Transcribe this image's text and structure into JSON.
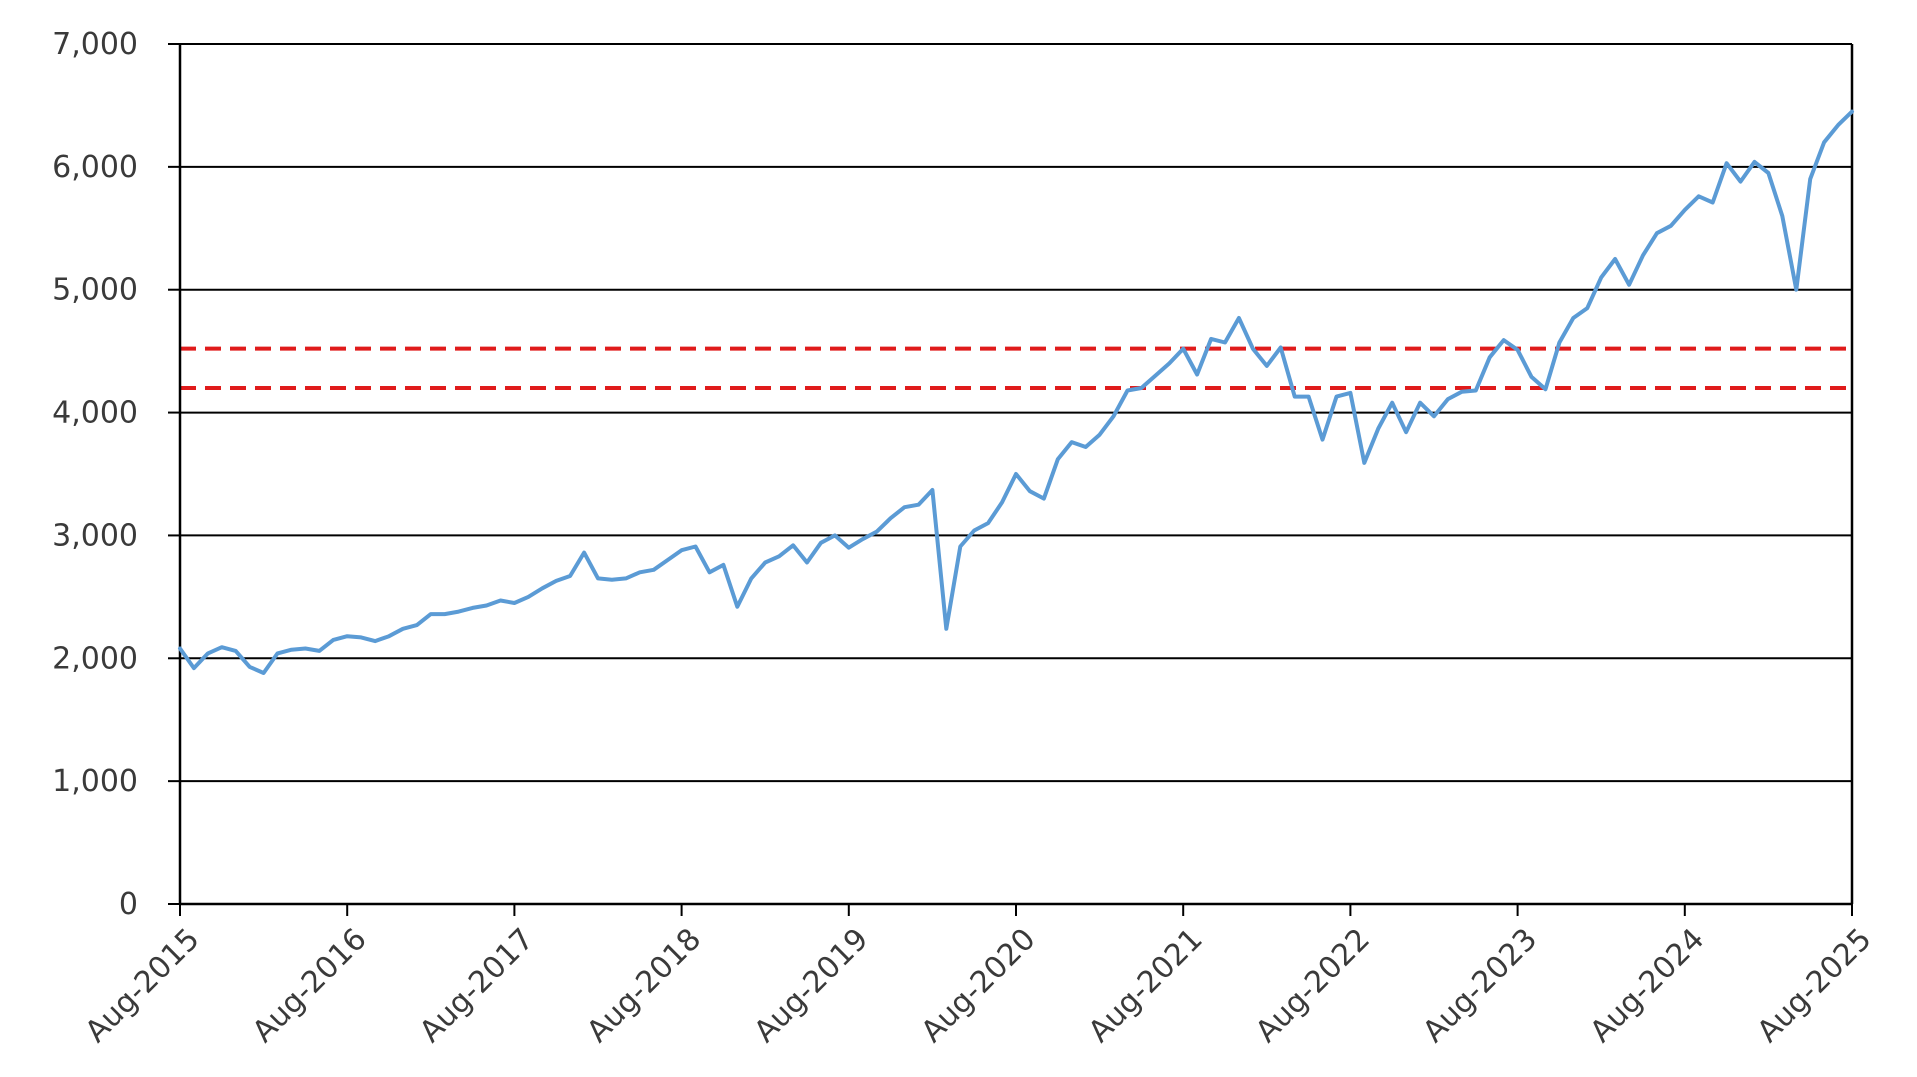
{
  "chart_data": {
    "type": "line",
    "title": "",
    "xlabel": "",
    "ylabel": "",
    "x_range": [
      "2015-08",
      "2025-08"
    ],
    "ylim": [
      0,
      7000
    ],
    "y_ticks": [
      {
        "value": 0,
        "label": "0"
      },
      {
        "value": 1000,
        "label": "1,000"
      },
      {
        "value": 2000,
        "label": "2,000"
      },
      {
        "value": 3000,
        "label": "3,000"
      },
      {
        "value": 4000,
        "label": "4,000"
      },
      {
        "value": 5000,
        "label": "5,000"
      },
      {
        "value": 6000,
        "label": "6,000"
      },
      {
        "value": 7000,
        "label": "7,000"
      }
    ],
    "x_ticks": [
      {
        "date": "2015-08",
        "label": "Aug-2015"
      },
      {
        "date": "2016-08",
        "label": "Aug-2016"
      },
      {
        "date": "2017-08",
        "label": "Aug-2017"
      },
      {
        "date": "2018-08",
        "label": "Aug-2018"
      },
      {
        "date": "2019-08",
        "label": "Aug-2019"
      },
      {
        "date": "2020-08",
        "label": "Aug-2020"
      },
      {
        "date": "2021-08",
        "label": "Aug-2021"
      },
      {
        "date": "2022-08",
        "label": "Aug-2022"
      },
      {
        "date": "2023-08",
        "label": "Aug-2023"
      },
      {
        "date": "2024-08",
        "label": "Aug-2024"
      },
      {
        "date": "2025-08",
        "label": "Aug-2025"
      }
    ],
    "grid": "horizontal",
    "legend": "none",
    "reference_lines": [
      {
        "y": 4520,
        "style": "dashed",
        "color": "#e01b1b"
      },
      {
        "y": 4200,
        "style": "dashed",
        "color": "#e01b1b"
      }
    ],
    "series": [
      {
        "color": "#5b9bd5",
        "points": [
          [
            "2015-08",
            2080
          ],
          [
            "2015-09",
            1920
          ],
          [
            "2015-10",
            2040
          ],
          [
            "2015-11",
            2090
          ],
          [
            "2015-12",
            2060
          ],
          [
            "2016-01",
            1930
          ],
          [
            "2016-02",
            1880
          ],
          [
            "2016-03",
            2040
          ],
          [
            "2016-04",
            2070
          ],
          [
            "2016-05",
            2080
          ],
          [
            "2016-06",
            2060
          ],
          [
            "2016-07",
            2150
          ],
          [
            "2016-08",
            2180
          ],
          [
            "2016-09",
            2170
          ],
          [
            "2016-10",
            2140
          ],
          [
            "2016-11",
            2180
          ],
          [
            "2016-12",
            2240
          ],
          [
            "2017-01",
            2270
          ],
          [
            "2017-02",
            2360
          ],
          [
            "2017-03",
            2360
          ],
          [
            "2017-04",
            2380
          ],
          [
            "2017-05",
            2410
          ],
          [
            "2017-06",
            2430
          ],
          [
            "2017-07",
            2470
          ],
          [
            "2017-08",
            2450
          ],
          [
            "2017-09",
            2500
          ],
          [
            "2017-10",
            2570
          ],
          [
            "2017-11",
            2630
          ],
          [
            "2017-12",
            2670
          ],
          [
            "2018-01",
            2860
          ],
          [
            "2018-02",
            2650
          ],
          [
            "2018-03",
            2640
          ],
          [
            "2018-04",
            2650
          ],
          [
            "2018-05",
            2700
          ],
          [
            "2018-06",
            2720
          ],
          [
            "2018-07",
            2800
          ],
          [
            "2018-08",
            2880
          ],
          [
            "2018-09",
            2910
          ],
          [
            "2018-10",
            2700
          ],
          [
            "2018-11",
            2760
          ],
          [
            "2018-12",
            2420
          ],
          [
            "2019-01",
            2650
          ],
          [
            "2019-02",
            2780
          ],
          [
            "2019-03",
            2830
          ],
          [
            "2019-04",
            2920
          ],
          [
            "2019-05",
            2780
          ],
          [
            "2019-06",
            2940
          ],
          [
            "2019-07",
            3000
          ],
          [
            "2019-08",
            2900
          ],
          [
            "2019-09",
            2970
          ],
          [
            "2019-10",
            3030
          ],
          [
            "2019-11",
            3140
          ],
          [
            "2019-12",
            3230
          ],
          [
            "2020-01",
            3250
          ],
          [
            "2020-02",
            3370
          ],
          [
            "2020-03",
            2240
          ],
          [
            "2020-04",
            2910
          ],
          [
            "2020-05",
            3040
          ],
          [
            "2020-06",
            3100
          ],
          [
            "2020-07",
            3270
          ],
          [
            "2020-08",
            3500
          ],
          [
            "2020-09",
            3360
          ],
          [
            "2020-10",
            3300
          ],
          [
            "2020-11",
            3620
          ],
          [
            "2020-12",
            3760
          ],
          [
            "2021-01",
            3720
          ],
          [
            "2021-02",
            3820
          ],
          [
            "2021-03",
            3970
          ],
          [
            "2021-04",
            4180
          ],
          [
            "2021-05",
            4200
          ],
          [
            "2021-06",
            4300
          ],
          [
            "2021-07",
            4400
          ],
          [
            "2021-08",
            4520
          ],
          [
            "2021-09",
            4310
          ],
          [
            "2021-10",
            4600
          ],
          [
            "2021-11",
            4570
          ],
          [
            "2021-12",
            4770
          ],
          [
            "2022-01",
            4520
          ],
          [
            "2022-02",
            4380
          ],
          [
            "2022-03",
            4530
          ],
          [
            "2022-04",
            4130
          ],
          [
            "2022-05",
            4130
          ],
          [
            "2022-06",
            3780
          ],
          [
            "2022-07",
            4130
          ],
          [
            "2022-08",
            4160
          ],
          [
            "2022-09",
            3590
          ],
          [
            "2022-10",
            3870
          ],
          [
            "2022-11",
            4080
          ],
          [
            "2022-12",
            3840
          ],
          [
            "2023-01",
            4080
          ],
          [
            "2023-02",
            3970
          ],
          [
            "2023-03",
            4110
          ],
          [
            "2023-04",
            4170
          ],
          [
            "2023-05",
            4180
          ],
          [
            "2023-06",
            4450
          ],
          [
            "2023-07",
            4590
          ],
          [
            "2023-08",
            4510
          ],
          [
            "2023-09",
            4290
          ],
          [
            "2023-10",
            4190
          ],
          [
            "2023-11",
            4570
          ],
          [
            "2023-12",
            4770
          ],
          [
            "2024-01",
            4850
          ],
          [
            "2024-02",
            5100
          ],
          [
            "2024-03",
            5250
          ],
          [
            "2024-04",
            5040
          ],
          [
            "2024-05",
            5280
          ],
          [
            "2024-06",
            5460
          ],
          [
            "2024-07",
            5520
          ],
          [
            "2024-08",
            5650
          ],
          [
            "2024-09",
            5760
          ],
          [
            "2024-10",
            5710
          ],
          [
            "2024-11",
            6030
          ],
          [
            "2024-12",
            5880
          ],
          [
            "2025-01",
            6040
          ],
          [
            "2025-02",
            5950
          ],
          [
            "2025-03",
            5600
          ],
          [
            "2025-04",
            5000
          ],
          [
            "2025-05",
            5900
          ],
          [
            "2025-06",
            6200
          ],
          [
            "2025-07",
            6340
          ],
          [
            "2025-08",
            6450
          ]
        ]
      }
    ]
  }
}
